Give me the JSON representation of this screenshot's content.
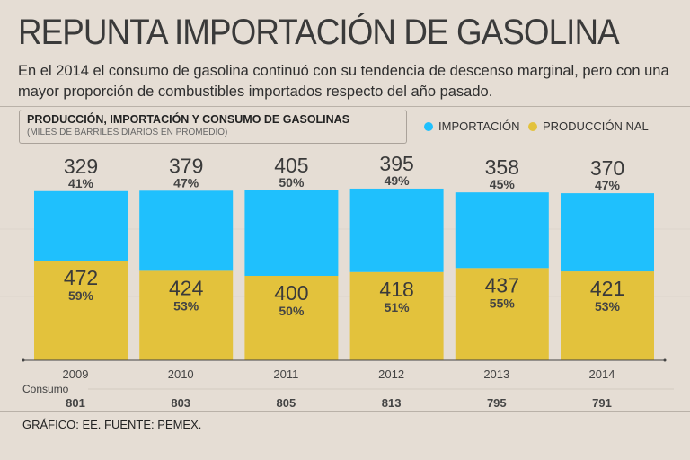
{
  "header": {
    "title": "REPUNTA IMPORTACIÓN DE GASOLINA",
    "subtitle": "En el 2014 el consumo de gasolina continuó con su tendencia de descenso marginal, pero con una mayor proporción de combustibles importados respecto del año pasado."
  },
  "footer": "GRÁFICO: EE. FUENTE: PEMEX.",
  "colors": {
    "import": "#1fc0fd",
    "production": "#e3c23c"
  },
  "chart_data": {
    "type": "bar",
    "stacked": true,
    "title": "PRODUCCIÓN, IMPORTACIÓN Y CONSUMO DE GASOLINAS",
    "subtitle": "(MILES DE BARRILES DIARIOS EN PROMEDIO)",
    "categories": [
      "2009",
      "2010",
      "2011",
      "2012",
      "2013",
      "2014"
    ],
    "series": [
      {
        "name": "PRODUCCIÓN NAL",
        "values": [
          472,
          424,
          400,
          418,
          437,
          421
        ],
        "percent": [
          "59%",
          "53%",
          "50%",
          "51%",
          "55%",
          "53%"
        ]
      },
      {
        "name": "IMPORTACIÓN",
        "values": [
          329,
          379,
          405,
          395,
          358,
          370
        ],
        "percent": [
          "41%",
          "47%",
          "50%",
          "49%",
          "45%",
          "47%"
        ]
      }
    ],
    "consumo_label": "Consumo",
    "consumo": [
      "801",
      "803",
      "805",
      "813",
      "795",
      "791"
    ],
    "legend": "top-right",
    "ylim": [
      0,
      850
    ]
  }
}
